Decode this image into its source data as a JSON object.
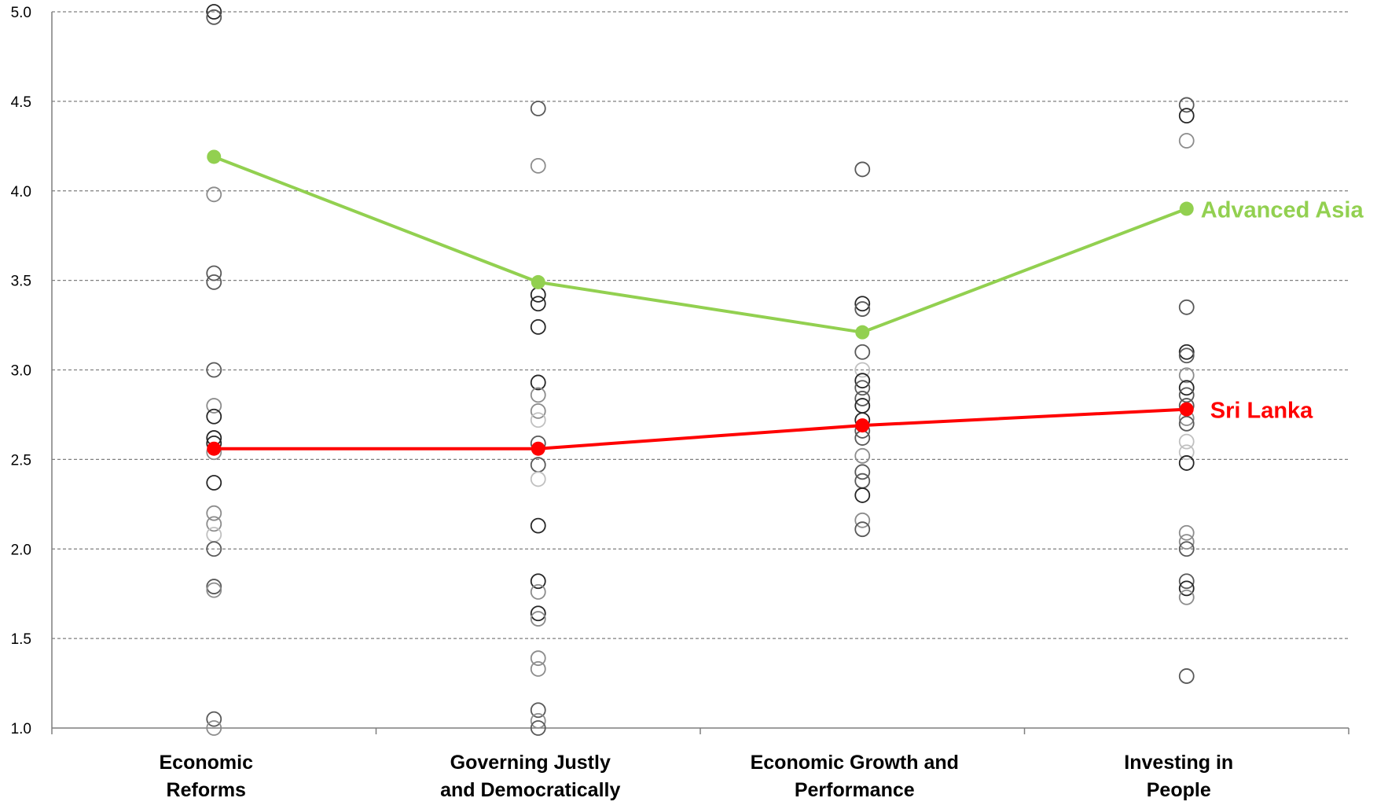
{
  "chart_data": {
    "type": "line",
    "categories": [
      [
        "Economic",
        "Reforms"
      ],
      [
        "Governing Justly",
        "and Democratically"
      ],
      [
        "Economic  Growth and",
        "Performance"
      ],
      [
        "Investing in",
        "People"
      ]
    ],
    "ylim": [
      1.0,
      5.0
    ],
    "yticks": [
      "1.0",
      "1.5",
      "2.0",
      "2.5",
      "3.0",
      "3.5",
      "4.0",
      "4.5",
      "5.0"
    ],
    "grid": true,
    "series": [
      {
        "name": "Advanced Asia",
        "values": [
          4.19,
          3.49,
          3.21,
          3.9
        ],
        "color": "#92d050"
      },
      {
        "name": "Sri Lanka",
        "values": [
          2.56,
          2.56,
          2.69,
          2.78
        ],
        "color": "#ff0000"
      }
    ],
    "scatter": [
      {
        "category": 0,
        "points": [
          {
            "y": 5.0,
            "shade": "dark"
          },
          {
            "y": 4.97,
            "shade": "mid"
          },
          {
            "y": 3.98,
            "shade": "light"
          },
          {
            "y": 3.54,
            "shade": "mid"
          },
          {
            "y": 3.49,
            "shade": "mid"
          },
          {
            "y": 3.0,
            "shade": "mid"
          },
          {
            "y": 2.8,
            "shade": "light"
          },
          {
            "y": 2.74,
            "shade": "dark"
          },
          {
            "y": 2.62,
            "shade": "dark"
          },
          {
            "y": 2.59,
            "shade": "dark"
          },
          {
            "y": 2.54,
            "shade": "light"
          },
          {
            "y": 2.37,
            "shade": "dark"
          },
          {
            "y": 2.2,
            "shade": "light"
          },
          {
            "y": 2.14,
            "shade": "light"
          },
          {
            "y": 2.08,
            "shade": "pale"
          },
          {
            "y": 2.0,
            "shade": "mid"
          },
          {
            "y": 1.79,
            "shade": "mid"
          },
          {
            "y": 1.77,
            "shade": "light"
          },
          {
            "y": 1.05,
            "shade": "mid"
          },
          {
            "y": 1.0,
            "shade": "light"
          }
        ]
      },
      {
        "category": 1,
        "points": [
          {
            "y": 4.46,
            "shade": "mid"
          },
          {
            "y": 4.14,
            "shade": "light"
          },
          {
            "y": 3.42,
            "shade": "dark"
          },
          {
            "y": 3.37,
            "shade": "dark"
          },
          {
            "y": 3.24,
            "shade": "dark"
          },
          {
            "y": 2.93,
            "shade": "dark"
          },
          {
            "y": 2.86,
            "shade": "light"
          },
          {
            "y": 2.77,
            "shade": "light"
          },
          {
            "y": 2.72,
            "shade": "pale"
          },
          {
            "y": 2.59,
            "shade": "mid"
          },
          {
            "y": 2.47,
            "shade": "mid"
          },
          {
            "y": 2.39,
            "shade": "pale"
          },
          {
            "y": 2.13,
            "shade": "dark"
          },
          {
            "y": 1.82,
            "shade": "dark"
          },
          {
            "y": 1.76,
            "shade": "light"
          },
          {
            "y": 1.64,
            "shade": "dark"
          },
          {
            "y": 1.61,
            "shade": "light"
          },
          {
            "y": 1.39,
            "shade": "light"
          },
          {
            "y": 1.33,
            "shade": "light"
          },
          {
            "y": 1.1,
            "shade": "mid"
          },
          {
            "y": 1.04,
            "shade": "light"
          },
          {
            "y": 1.0,
            "shade": "mid"
          }
        ]
      },
      {
        "category": 2,
        "points": [
          {
            "y": 4.12,
            "shade": "mid"
          },
          {
            "y": 3.37,
            "shade": "dark"
          },
          {
            "y": 3.34,
            "shade": "mid"
          },
          {
            "y": 3.1,
            "shade": "mid"
          },
          {
            "y": 3.0,
            "shade": "pale"
          },
          {
            "y": 2.94,
            "shade": "dark"
          },
          {
            "y": 2.9,
            "shade": "mid"
          },
          {
            "y": 2.84,
            "shade": "mid"
          },
          {
            "y": 2.8,
            "shade": "dark"
          },
          {
            "y": 2.72,
            "shade": "dark"
          },
          {
            "y": 2.66,
            "shade": "mid"
          },
          {
            "y": 2.62,
            "shade": "mid"
          },
          {
            "y": 2.52,
            "shade": "light"
          },
          {
            "y": 2.43,
            "shade": "mid"
          },
          {
            "y": 2.38,
            "shade": "mid"
          },
          {
            "y": 2.3,
            "shade": "dark"
          },
          {
            "y": 2.16,
            "shade": "light"
          },
          {
            "y": 2.11,
            "shade": "mid"
          }
        ]
      },
      {
        "category": 3,
        "points": [
          {
            "y": 4.48,
            "shade": "mid"
          },
          {
            "y": 4.42,
            "shade": "dark"
          },
          {
            "y": 4.28,
            "shade": "light"
          },
          {
            "y": 3.35,
            "shade": "mid"
          },
          {
            "y": 3.1,
            "shade": "dark"
          },
          {
            "y": 3.08,
            "shade": "mid"
          },
          {
            "y": 2.97,
            "shade": "light"
          },
          {
            "y": 2.9,
            "shade": "dark"
          },
          {
            "y": 2.86,
            "shade": "mid"
          },
          {
            "y": 2.8,
            "shade": "mid"
          },
          {
            "y": 2.73,
            "shade": "light"
          },
          {
            "y": 2.7,
            "shade": "mid"
          },
          {
            "y": 2.6,
            "shade": "pale"
          },
          {
            "y": 2.54,
            "shade": "pale"
          },
          {
            "y": 2.48,
            "shade": "dark"
          },
          {
            "y": 2.09,
            "shade": "light"
          },
          {
            "y": 2.04,
            "shade": "light"
          },
          {
            "y": 2.0,
            "shade": "mid"
          },
          {
            "y": 1.82,
            "shade": "mid"
          },
          {
            "y": 1.78,
            "shade": "dark"
          },
          {
            "y": 1.73,
            "shade": "light"
          },
          {
            "y": 1.29,
            "shade": "mid"
          }
        ]
      }
    ]
  }
}
